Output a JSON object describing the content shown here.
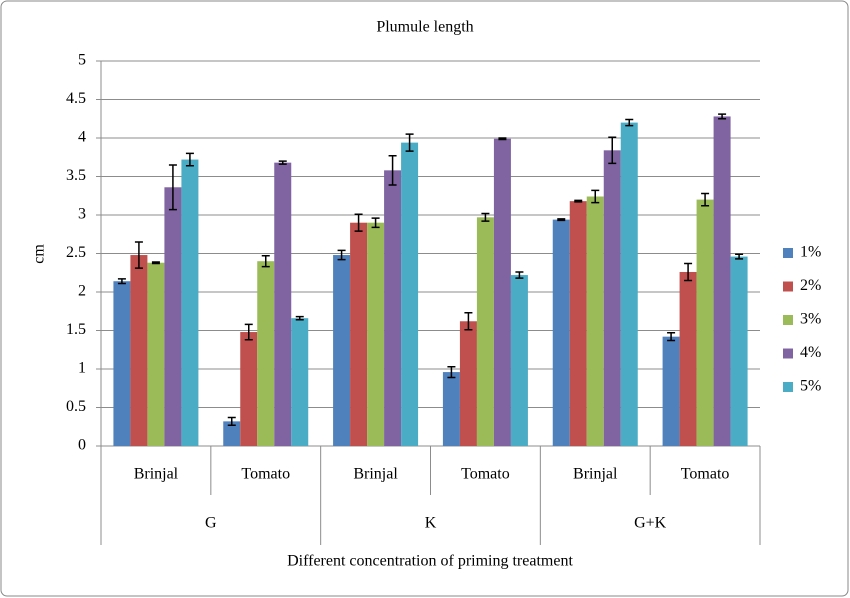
{
  "chart_data": {
    "type": "bar",
    "title": "Plumule length",
    "x_label": "Different concentration of priming treatment",
    "y_label": "cm",
    "categories": [
      "Brinjal",
      "Tomato",
      "Brinjal",
      "Tomato",
      "Brinjal",
      "Tomato"
    ],
    "groups": [
      "G",
      "K",
      "G+K"
    ],
    "ylim": [
      0,
      5
    ],
    "yticks": [
      0,
      0.5,
      1,
      1.5,
      2,
      2.5,
      3,
      3.5,
      4,
      4.5,
      5
    ],
    "grid": true,
    "legend": "right",
    "series": [
      {
        "name": "1%",
        "color": "#4f81bd",
        "values": [
          2.14,
          0.32,
          2.48,
          0.96,
          2.94,
          1.42
        ],
        "errors": [
          0.03,
          0.05,
          0.06,
          0.07,
          0.01,
          0.05
        ]
      },
      {
        "name": "2%",
        "color": "#c0504d",
        "values": [
          2.48,
          1.48,
          2.9,
          1.62,
          3.18,
          2.26
        ],
        "errors": [
          0.17,
          0.1,
          0.11,
          0.11,
          0.01,
          0.11
        ]
      },
      {
        "name": "3%",
        "color": "#9bbb59",
        "values": [
          2.38,
          2.4,
          2.9,
          2.97,
          3.24,
          3.2
        ],
        "errors": [
          0.01,
          0.07,
          0.06,
          0.05,
          0.08,
          0.08
        ]
      },
      {
        "name": "4%",
        "color": "#8064a2",
        "values": [
          3.36,
          3.68,
          3.58,
          3.99,
          3.84,
          4.28
        ],
        "errors": [
          0.29,
          0.02,
          0.19,
          0.01,
          0.17,
          0.03
        ]
      },
      {
        "name": "5%",
        "color": "#4bacc6",
        "values": [
          3.72,
          1.66,
          3.94,
          2.22,
          4.2,
          2.46
        ],
        "errors": [
          0.08,
          0.02,
          0.11,
          0.04,
          0.04,
          0.03
        ]
      }
    ]
  }
}
